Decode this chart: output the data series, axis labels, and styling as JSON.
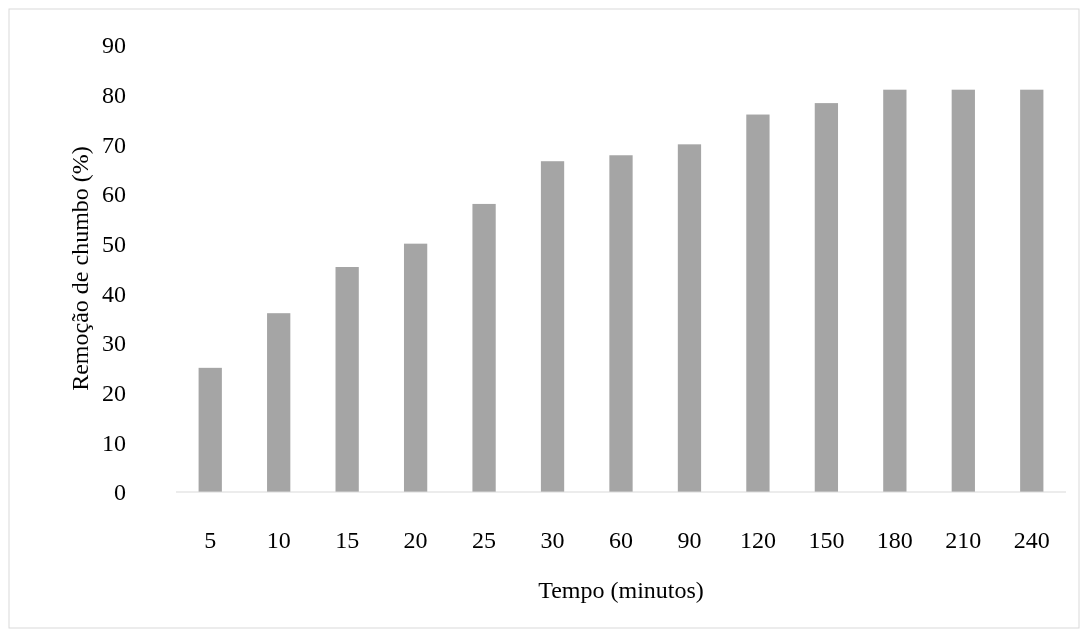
{
  "chart_data": {
    "type": "bar",
    "xlabel": "Tempo (minutos)",
    "ylabel": "Remoção de chumbo (%)",
    "categories": [
      "5",
      "10",
      "15",
      "20",
      "25",
      "30",
      "60",
      "90",
      "120",
      "150",
      "180",
      "210",
      "240"
    ],
    "values": [
      25,
      36,
      45.3,
      50,
      58,
      66.6,
      67.8,
      70,
      76,
      78.3,
      81,
      81,
      81
    ],
    "color": "#a5a5a5",
    "ylim": [
      0,
      90
    ],
    "yticks": [
      0,
      10,
      20,
      30,
      40,
      50,
      60,
      70,
      80,
      90
    ],
    "grid": false
  }
}
